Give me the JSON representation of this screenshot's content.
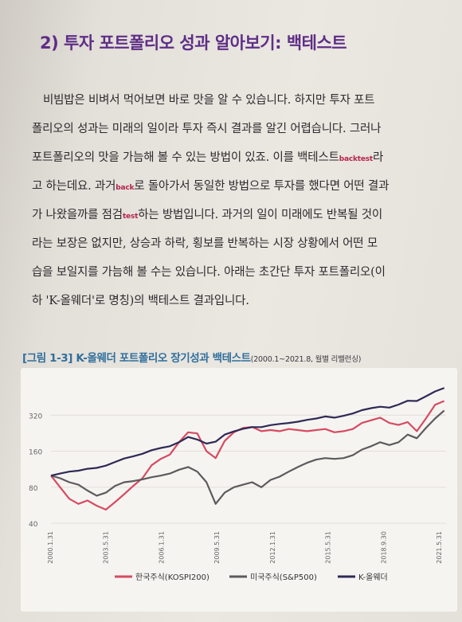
{
  "heading": "2) 투자 포트폴리오 성과 알아보기: 백테스트",
  "paragraph": {
    "line1": "비빔밥은 비벼서 먹어보면 바로 맛을 알 수 있습니다. 하지만 투자 포트",
    "line2": "폴리오의 성과는 미래의 일이라 투자 즉시 결과를 알긴 어렵습니다. 그러나",
    "line3_a": "포트폴리오의 맛을 가늠해 볼 수 있는 방법이 있죠. 이를 백테스트",
    "line3_en": "backtest",
    "line3_b": "라",
    "line4_a": "고 하는데요. 과거",
    "line4_en": "back",
    "line4_b": "로 돌아가서 동일한 방법으로 투자를 했다면 어떤 결과",
    "line5_a": "가 나왔을까를 점검",
    "line5_en": "test",
    "line5_b": "하는 방법입니다. 과거의 일이 미래에도 반복될 것이",
    "line6": "라는 보장은 없지만, 상승과 하락, 횡보를 반복하는 시장 상황에서 어떤 모",
    "line7": "습을 보일지를 가늠해 볼 수는 있습니다. 아래는 초간단 투자 포트폴리오(이",
    "line8": "하 'K-올웨더'로 명칭)의 백테스트 결과입니다."
  },
  "figure": {
    "title": "[그림 1-3] K-올웨더 포트폴리오 장기성과 백테스트",
    "subtitle": "(2000.1~2021.8, 월별 리밸런싱)"
  },
  "chart_data": {
    "type": "line",
    "y_scale": "log",
    "ylim": [
      40,
      640
    ],
    "y_ticks": [
      "320",
      "160",
      "80",
      "40"
    ],
    "x_tick_labels": [
      "2000.1.31",
      "2003.5.31",
      "2006.1.31",
      "2009.5.31",
      "2012.1.31",
      "2015.5.31",
      "2018.9.30",
      "2021.5.31"
    ],
    "x": [
      2000.0,
      2000.5,
      2001.0,
      2001.5,
      2002.0,
      2002.5,
      2003.0,
      2003.5,
      2004.0,
      2004.5,
      2005.0,
      2005.5,
      2006.0,
      2006.5,
      2007.0,
      2007.5,
      2008.0,
      2008.5,
      2009.0,
      2009.5,
      2010.0,
      2010.5,
      2011.0,
      2011.5,
      2012.0,
      2012.5,
      2013.0,
      2013.5,
      2014.0,
      2014.5,
      2015.0,
      2015.5,
      2016.0,
      2016.5,
      2017.0,
      2017.5,
      2018.0,
      2018.5,
      2019.0,
      2019.5,
      2020.0,
      2020.5,
      2021.0,
      2021.5
    ],
    "series": [
      {
        "name": "한국주식(KOSPI200)",
        "color": "#d64b62",
        "values": [
          100,
          80,
          64,
          58,
          62,
          56,
          52,
          60,
          70,
          82,
          95,
          122,
          138,
          150,
          190,
          230,
          225,
          160,
          140,
          195,
          230,
          250,
          255,
          235,
          240,
          235,
          245,
          240,
          235,
          240,
          245,
          230,
          235,
          245,
          275,
          290,
          305,
          275,
          265,
          280,
          235,
          300,
          390,
          420
        ]
      },
      {
        "name": "미국주식(S&P500)",
        "color": "#5c5a5d",
        "values": [
          100,
          95,
          88,
          84,
          75,
          68,
          72,
          82,
          88,
          90,
          93,
          97,
          100,
          104,
          112,
          118,
          108,
          88,
          58,
          72,
          80,
          84,
          88,
          80,
          92,
          98,
          108,
          118,
          128,
          136,
          140,
          138,
          140,
          148,
          165,
          176,
          190,
          180,
          190,
          220,
          205,
          250,
          300,
          350
        ]
      },
      {
        "name": "K-올웨더",
        "color": "#2e2a55",
        "values": [
          100,
          104,
          108,
          110,
          114,
          116,
          121,
          130,
          139,
          145,
          152,
          163,
          170,
          176,
          190,
          210,
          200,
          185,
          192,
          220,
          234,
          246,
          254,
          254,
          264,
          270,
          275,
          282,
          292,
          300,
          312,
          305,
          316,
          330,
          352,
          366,
          376,
          370,
          392,
          422,
          420,
          460,
          505,
          540
        ]
      }
    ],
    "grid": "horizontal",
    "legend_position": "bottom"
  }
}
